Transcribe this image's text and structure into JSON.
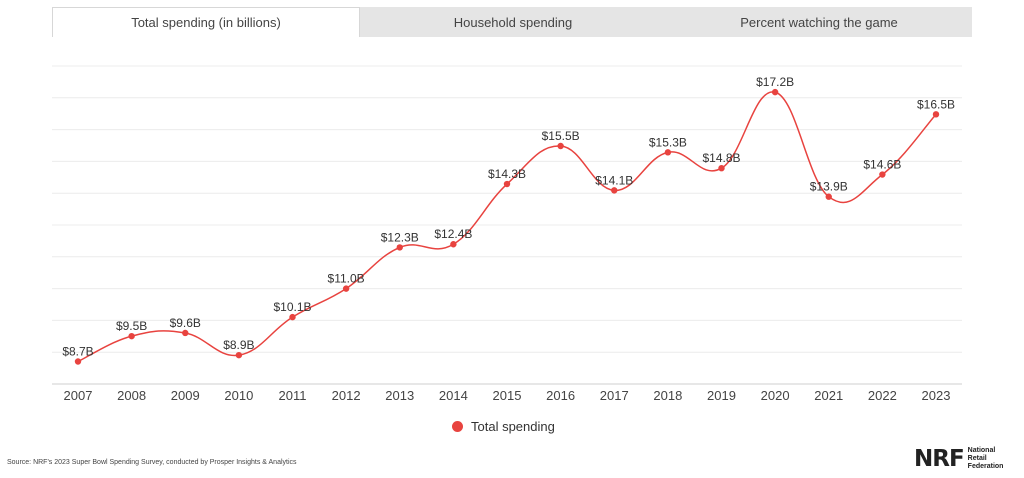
{
  "tabs": [
    {
      "label": "Total spending (in billions)",
      "active": true
    },
    {
      "label": "Household spending",
      "active": false
    },
    {
      "label": "Percent watching the game",
      "active": false
    }
  ],
  "chart_data": {
    "type": "line",
    "x": [
      "2007",
      "2008",
      "2009",
      "2010",
      "2011",
      "2012",
      "2013",
      "2014",
      "2015",
      "2016",
      "2017",
      "2018",
      "2019",
      "2020",
      "2021",
      "2022",
      "2023"
    ],
    "series": [
      {
        "name": "Total spending",
        "values": [
          8.7,
          9.5,
          9.6,
          8.9,
          10.1,
          11.0,
          12.3,
          12.4,
          14.3,
          15.5,
          14.1,
          15.3,
          14.8,
          17.2,
          13.9,
          14.6,
          16.5
        ],
        "labels": [
          "$8.7B",
          "$9.5B",
          "$9.6B",
          "$8.9B",
          "$10.1B",
          "$11.0B",
          "$12.3B",
          "$12.4B",
          "$14.3B",
          "$15.5B",
          "$14.1B",
          "$15.3B",
          "$14.8B",
          "$17.2B",
          "$13.9B",
          "$14.6B",
          "$16.5B"
        ],
        "color": "#e8433f"
      }
    ],
    "ylim": [
      8,
      18
    ],
    "grid": true,
    "legend": "bottom"
  },
  "legend_label": "Total spending",
  "source_text": "Source: NRF's 2023 Super Bowl Spending Survey, conducted by Prosper Insights & Analytics",
  "logo": {
    "mark": "NRF",
    "line1": "National",
    "line2": "Retail",
    "line3": "Federation"
  }
}
